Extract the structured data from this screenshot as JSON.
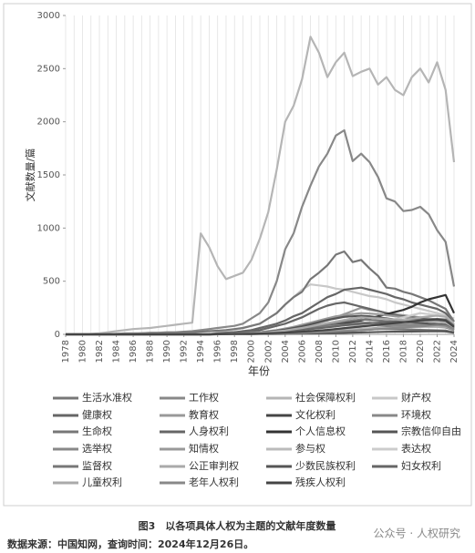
{
  "chart_data": {
    "type": "line",
    "title": "图3　以各项具体人权为主题的文献年度数量",
    "source": "数据来源：中国知网，查询时间：2024年12月26日。",
    "watermark": "公众号 · 人权研究",
    "xlabel": "年份",
    "ylabel": "文献数量/篇",
    "x": [
      1978,
      1979,
      1980,
      1981,
      1982,
      1983,
      1984,
      1985,
      1986,
      1987,
      1988,
      1989,
      1990,
      1991,
      1992,
      1993,
      1994,
      1995,
      1996,
      1997,
      1998,
      1999,
      2000,
      2001,
      2002,
      2003,
      2004,
      2005,
      2006,
      2007,
      2008,
      2009,
      2010,
      2011,
      2012,
      2013,
      2014,
      2015,
      2016,
      2017,
      2018,
      2019,
      2020,
      2021,
      2022,
      2023,
      2024
    ],
    "xlim": [
      1978,
      2024
    ],
    "xticks": [
      1978,
      1980,
      1982,
      1984,
      1986,
      1988,
      1990,
      1992,
      1994,
      1996,
      1998,
      2000,
      2002,
      2004,
      2006,
      2008,
      2010,
      2012,
      2014,
      2016,
      2018,
      2020,
      2022,
      2024
    ],
    "ylim": [
      0,
      3000
    ],
    "yticks": [
      0,
      500,
      1000,
      1500,
      2000,
      2500,
      3000
    ],
    "grid": true,
    "series": [
      {
        "name": "生活水准权",
        "color": "#777777",
        "values": [
          0,
          0,
          0,
          0,
          0,
          0,
          0,
          0,
          0,
          0,
          0,
          0,
          0,
          0,
          0,
          0,
          0,
          0,
          1,
          1,
          2,
          2,
          3,
          4,
          5,
          6,
          8,
          10,
          12,
          15,
          18,
          20,
          25,
          30,
          35,
          40,
          45,
          50,
          50,
          48,
          46,
          44,
          42,
          40,
          38,
          36,
          20
        ]
      },
      {
        "name": "工作权",
        "color": "#888888",
        "values": [
          0,
          0,
          0,
          0,
          0,
          0,
          0,
          0,
          0,
          0,
          0,
          0,
          0,
          0,
          0,
          0,
          0,
          0,
          5,
          5,
          10,
          10,
          15,
          20,
          25,
          30,
          40,
          50,
          60,
          70,
          80,
          90,
          100,
          100,
          100,
          110,
          110,
          100,
          100,
          95,
          95,
          90,
          90,
          85,
          80,
          75,
          50
        ]
      },
      {
        "name": "社会保障权利",
        "color": "#b5b5b5",
        "values": [
          0,
          0,
          0,
          5,
          10,
          20,
          30,
          40,
          50,
          55,
          60,
          70,
          80,
          90,
          100,
          110,
          950,
          820,
          640,
          520,
          550,
          580,
          700,
          900,
          1150,
          1550,
          2000,
          2150,
          2400,
          2800,
          2650,
          2420,
          2560,
          2650,
          2430,
          2470,
          2500,
          2350,
          2420,
          2300,
          2250,
          2420,
          2500,
          2370,
          2560,
          2300,
          1620
        ]
      },
      {
        "name": "财产权",
        "color": "#c8c8c8",
        "values": [
          0,
          0,
          0,
          0,
          0,
          0,
          0,
          0,
          0,
          0,
          0,
          0,
          0,
          0,
          0,
          0,
          0,
          0,
          20,
          30,
          40,
          60,
          80,
          100,
          150,
          200,
          280,
          350,
          420,
          470,
          460,
          450,
          430,
          420,
          400,
          380,
          360,
          350,
          330,
          300,
          280,
          260,
          240,
          220,
          200,
          180,
          150
        ]
      },
      {
        "name": "健康权",
        "color": "#666666",
        "values": [
          0,
          0,
          0,
          0,
          0,
          0,
          0,
          0,
          0,
          0,
          0,
          0,
          0,
          0,
          0,
          0,
          0,
          0,
          10,
          15,
          20,
          30,
          40,
          60,
          80,
          100,
          130,
          170,
          200,
          250,
          300,
          350,
          380,
          420,
          430,
          440,
          420,
          400,
          380,
          350,
          330,
          300,
          280,
          260,
          240,
          200,
          120
        ]
      },
      {
        "name": "教育权",
        "color": "#999999",
        "values": [
          0,
          0,
          0,
          0,
          0,
          0,
          0,
          0,
          0,
          0,
          0,
          0,
          0,
          0,
          0,
          0,
          0,
          0,
          2,
          4,
          6,
          8,
          10,
          15,
          20,
          30,
          40,
          55,
          70,
          90,
          110,
          130,
          160,
          190,
          220,
          250,
          230,
          220,
          200,
          190,
          180,
          170,
          160,
          150,
          140,
          130,
          90
        ]
      },
      {
        "name": "文化权利",
        "color": "#444444",
        "values": [
          0,
          0,
          0,
          0,
          0,
          0,
          0,
          0,
          0,
          0,
          0,
          0,
          0,
          0,
          0,
          0,
          0,
          0,
          2,
          2,
          3,
          4,
          5,
          6,
          8,
          10,
          12,
          15,
          18,
          22,
          26,
          30,
          35,
          40,
          45,
          50,
          55,
          60,
          62,
          64,
          66,
          68,
          70,
          72,
          74,
          70,
          40
        ]
      },
      {
        "name": "环境权",
        "color": "#888888",
        "values": [
          0,
          0,
          0,
          0,
          0,
          5,
          5,
          10,
          10,
          10,
          15,
          15,
          20,
          20,
          25,
          30,
          40,
          50,
          60,
          70,
          80,
          100,
          150,
          200,
          300,
          500,
          800,
          950,
          1200,
          1400,
          1580,
          1700,
          1870,
          1920,
          1630,
          1700,
          1620,
          1480,
          1280,
          1250,
          1160,
          1170,
          1200,
          1130,
          980,
          870,
          450
        ]
      },
      {
        "name": "生命权",
        "color": "#777777",
        "values": [
          0,
          0,
          0,
          0,
          0,
          0,
          5,
          5,
          5,
          10,
          10,
          10,
          15,
          15,
          20,
          20,
          25,
          30,
          35,
          40,
          50,
          60,
          80,
          100,
          150,
          200,
          280,
          350,
          400,
          520,
          580,
          650,
          750,
          780,
          680,
          700,
          620,
          550,
          440,
          430,
          400,
          380,
          350,
          320,
          280,
          240,
          120
        ]
      },
      {
        "name": "人身权利",
        "color": "#666666",
        "values": [
          0,
          0,
          0,
          0,
          0,
          0,
          0,
          0,
          0,
          0,
          0,
          0,
          0,
          0,
          0,
          0,
          0,
          0,
          5,
          10,
          15,
          20,
          30,
          40,
          60,
          80,
          100,
          130,
          160,
          200,
          240,
          270,
          290,
          300,
          280,
          260,
          240,
          220,
          200,
          180,
          170,
          160,
          150,
          140,
          130,
          120,
          80
        ]
      },
      {
        "name": "个人信息权",
        "color": "#333333",
        "values": [
          0,
          0,
          0,
          0,
          0,
          0,
          0,
          0,
          0,
          0,
          0,
          0,
          0,
          0,
          0,
          0,
          0,
          0,
          5,
          5,
          10,
          10,
          15,
          20,
          25,
          30,
          40,
          50,
          60,
          70,
          80,
          90,
          100,
          110,
          120,
          130,
          150,
          170,
          190,
          210,
          230,
          260,
          300,
          330,
          350,
          370,
          200
        ]
      },
      {
        "name": "宗教信仰自由",
        "color": "#555555",
        "values": [
          0,
          0,
          0,
          0,
          0,
          0,
          0,
          0,
          0,
          0,
          0,
          0,
          0,
          0,
          0,
          0,
          0,
          0,
          1,
          1,
          1,
          2,
          2,
          3,
          3,
          4,
          5,
          6,
          7,
          8,
          9,
          10,
          12,
          14,
          16,
          18,
          20,
          22,
          24,
          25,
          26,
          27,
          28,
          29,
          30,
          28,
          15
        ]
      },
      {
        "name": "选举权",
        "color": "#888888",
        "values": [
          0,
          0,
          0,
          0,
          0,
          0,
          0,
          0,
          0,
          0,
          0,
          0,
          0,
          0,
          0,
          0,
          0,
          0,
          3,
          4,
          6,
          8,
          10,
          14,
          18,
          24,
          30,
          40,
          50,
          60,
          70,
          75,
          80,
          85,
          90,
          88,
          86,
          84,
          82,
          80,
          78,
          76,
          74,
          72,
          70,
          65,
          40
        ]
      },
      {
        "name": "知情权",
        "color": "#999999",
        "values": [
          0,
          0,
          0,
          0,
          0,
          0,
          0,
          0,
          0,
          0,
          0,
          0,
          0,
          0,
          0,
          0,
          0,
          0,
          3,
          5,
          8,
          10,
          15,
          20,
          30,
          40,
          55,
          70,
          90,
          110,
          130,
          150,
          170,
          180,
          190,
          200,
          195,
          190,
          180,
          170,
          160,
          150,
          140,
          130,
          120,
          110,
          70
        ]
      },
      {
        "name": "参与权",
        "color": "#bbbbbb",
        "values": [
          0,
          0,
          0,
          0,
          0,
          0,
          0,
          0,
          0,
          0,
          0,
          0,
          0,
          0,
          0,
          0,
          0,
          0,
          1,
          2,
          3,
          4,
          5,
          7,
          9,
          12,
          15,
          18,
          22,
          26,
          30,
          34,
          38,
          42,
          46,
          50,
          54,
          58,
          60,
          62,
          64,
          66,
          68,
          70,
          72,
          74,
          45
        ]
      },
      {
        "name": "表达权",
        "color": "#cccccc",
        "values": [
          0,
          0,
          0,
          0,
          0,
          0,
          0,
          0,
          0,
          0,
          0,
          0,
          0,
          0,
          0,
          0,
          0,
          0,
          1,
          2,
          3,
          4,
          5,
          6,
          8,
          10,
          12,
          15,
          20,
          25,
          30,
          40,
          50,
          60,
          70,
          80,
          90,
          100,
          120,
          140,
          160,
          180,
          200,
          190,
          180,
          170,
          100
        ]
      },
      {
        "name": "监督权",
        "color": "#777777",
        "values": [
          0,
          0,
          0,
          0,
          0,
          0,
          0,
          0,
          0,
          0,
          0,
          0,
          0,
          0,
          0,
          0,
          0,
          0,
          4,
          6,
          8,
          10,
          12,
          16,
          20,
          26,
          34,
          44,
          55,
          66,
          78,
          90,
          105,
          120,
          130,
          140,
          135,
          130,
          125,
          120,
          115,
          110,
          105,
          100,
          95,
          90,
          55
        ]
      },
      {
        "name": "公正审判权",
        "color": "#aaaaaa",
        "values": [
          0,
          0,
          0,
          0,
          0,
          0,
          0,
          0,
          0,
          0,
          0,
          0,
          0,
          0,
          0,
          0,
          0,
          0,
          2,
          3,
          4,
          5,
          6,
          8,
          10,
          12,
          15,
          18,
          22,
          26,
          32,
          40,
          48,
          56,
          64,
          72,
          80,
          90,
          100,
          115,
          130,
          145,
          160,
          170,
          175,
          165,
          95
        ]
      },
      {
        "name": "少数民族权利",
        "color": "#555555",
        "values": [
          0,
          0,
          0,
          0,
          0,
          0,
          0,
          0,
          0,
          0,
          0,
          0,
          0,
          0,
          0,
          0,
          0,
          0,
          5,
          8,
          10,
          12,
          15,
          20,
          25,
          35,
          45,
          60,
          75,
          95,
          115,
          135,
          150,
          165,
          170,
          175,
          170,
          160,
          150,
          140,
          130,
          120,
          110,
          100,
          95,
          90,
          60
        ]
      },
      {
        "name": "妇女权利",
        "color": "#666666",
        "values": [
          0,
          0,
          0,
          0,
          0,
          0,
          0,
          0,
          0,
          0,
          0,
          0,
          0,
          0,
          0,
          0,
          0,
          0,
          5,
          6,
          8,
          10,
          12,
          15,
          18,
          22,
          28,
          35,
          42,
          50,
          58,
          66,
          75,
          85,
          95,
          100,
          105,
          110,
          115,
          120,
          125,
          130,
          135,
          140,
          145,
          140,
          80
        ]
      },
      {
        "name": "儿童权利",
        "color": "#aaaaaa",
        "values": [
          0,
          0,
          0,
          0,
          0,
          0,
          0,
          0,
          0,
          0,
          0,
          0,
          0,
          0,
          0,
          0,
          0,
          0,
          3,
          5,
          7,
          9,
          12,
          16,
          20,
          28,
          36,
          48,
          60,
          75,
          90,
          105,
          120,
          135,
          150,
          160,
          155,
          150,
          145,
          140,
          135,
          130,
          125,
          120,
          115,
          110,
          65
        ]
      },
      {
        "name": "老年人权利",
        "color": "#888888",
        "values": [
          0,
          0,
          0,
          0,
          0,
          0,
          0,
          0,
          0,
          0,
          0,
          0,
          0,
          0,
          0,
          0,
          0,
          0,
          1,
          2,
          3,
          4,
          5,
          6,
          7,
          8,
          10,
          12,
          14,
          17,
          20,
          24,
          28,
          32,
          36,
          40,
          45,
          50,
          55,
          60,
          65,
          70,
          75,
          80,
          85,
          80,
          45
        ]
      },
      {
        "name": "残疾人权利",
        "color": "#444444",
        "values": [
          0,
          0,
          0,
          0,
          0,
          0,
          0,
          0,
          0,
          0,
          0,
          0,
          0,
          0,
          0,
          0,
          0,
          0,
          2,
          3,
          4,
          5,
          6,
          8,
          10,
          13,
          16,
          20,
          25,
          30,
          36,
          42,
          50,
          58,
          66,
          74,
          82,
          90,
          98,
          106,
          114,
          122,
          130,
          135,
          140,
          130,
          70
        ]
      }
    ]
  }
}
